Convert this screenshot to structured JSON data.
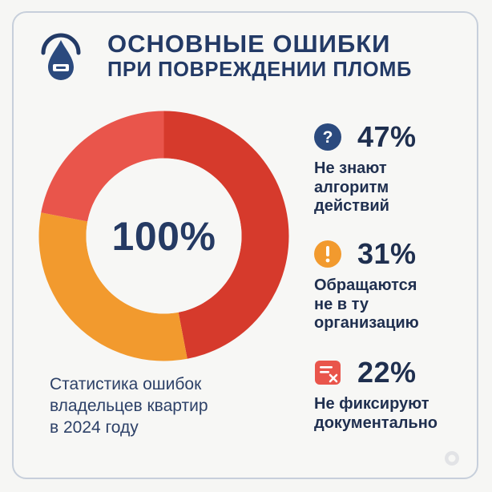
{
  "header": {
    "title_line1": "ОСНОВНЫЕ ОШИБКИ",
    "title_line2": "ПРИ ПОВРЕЖДЕНИИ ПЛОМБ"
  },
  "chart_data": {
    "type": "pie",
    "center_label": "100%",
    "categories": [
      "Не знают алгоритм действий",
      "Обращаются не в ту организацию",
      "Не фиксируют документально"
    ],
    "values": [
      47,
      31,
      22
    ],
    "colors": [
      "#d63a2c",
      "#f29a2e",
      "#e9554b"
    ]
  },
  "caption": {
    "line1": "Статистика ошибок",
    "line2": "владельцев квартир",
    "line3": "в 2024 году"
  },
  "stats": [
    {
      "icon": "question-icon",
      "color": "#2b4a7e",
      "percent": "47%",
      "lines": [
        "Не знают",
        "алгоритм",
        "действий"
      ]
    },
    {
      "icon": "exclamation-icon",
      "color": "#f29a2e",
      "percent": "31%",
      "lines": [
        "Обращаются",
        "не в ту",
        "организацию"
      ]
    },
    {
      "icon": "document-cross-icon",
      "color": "#e9554b",
      "percent": "22%",
      "lines": [
        "Не фиксируют",
        "документально"
      ]
    }
  ]
}
